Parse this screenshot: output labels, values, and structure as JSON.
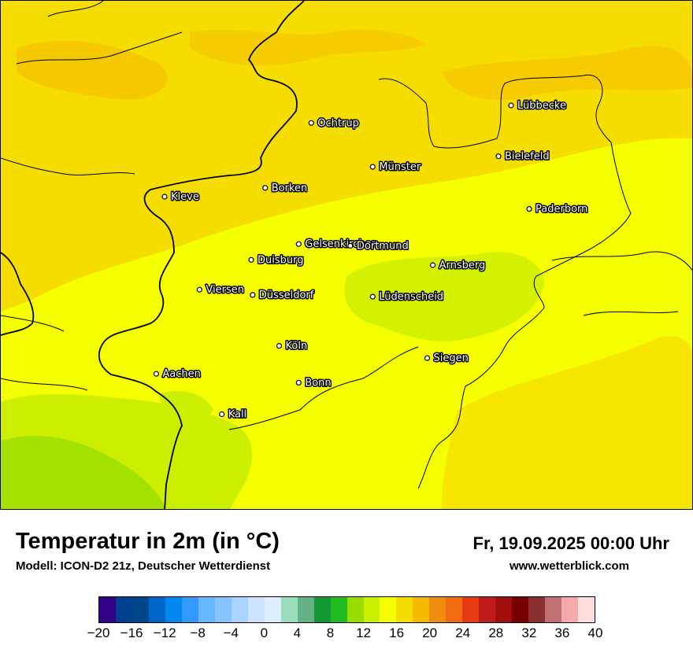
{
  "title": "Temperatur in 2m (in °C)",
  "subtitle": "Modell: ICON-D2 21z, Deutscher Wetterdienst",
  "datetime": "Fr, 19.09.2025 00:00 Uhr",
  "website": "www.wetterblick.com",
  "cities": [
    {
      "name": "Lübbecke",
      "lon": 8.62,
      "lat": 52.31
    },
    {
      "name": "Ochtrup",
      "lon": 7.19,
      "lat": 52.21
    },
    {
      "name": "Bielefeld",
      "lon": 8.53,
      "lat": 52.02
    },
    {
      "name": "Münster",
      "lon": 7.63,
      "lat": 51.96
    },
    {
      "name": "Borken",
      "lon": 6.86,
      "lat": 51.84
    },
    {
      "name": "Kleve",
      "lon": 6.14,
      "lat": 51.79
    },
    {
      "name": "Paderborn",
      "lon": 8.75,
      "lat": 51.72
    },
    {
      "name": "Gelsenkirchen",
      "lon": 7.1,
      "lat": 51.52
    },
    {
      "name": "Dortmund",
      "lon": 7.47,
      "lat": 51.51
    },
    {
      "name": "Duisburg",
      "lon": 6.76,
      "lat": 51.43
    },
    {
      "name": "Arnsberg",
      "lon": 8.06,
      "lat": 51.4
    },
    {
      "name": "Viersen",
      "lon": 6.39,
      "lat": 51.26
    },
    {
      "name": "Düsseldorf",
      "lon": 6.77,
      "lat": 51.23
    },
    {
      "name": "Lüdenscheid",
      "lon": 7.63,
      "lat": 51.22
    },
    {
      "name": "Köln",
      "lon": 6.96,
      "lat": 50.94
    },
    {
      "name": "Siegen",
      "lon": 8.02,
      "lat": 50.87
    },
    {
      "name": "Aachen",
      "lon": 6.08,
      "lat": 50.78
    },
    {
      "name": "Bonn",
      "lon": 7.1,
      "lat": 50.73
    },
    {
      "name": "Kall",
      "lon": 6.55,
      "lat": 50.55
    }
  ],
  "legend": {
    "unit": "°C",
    "ticks": [
      "−20",
      "−16",
      "−12",
      "−8",
      "−4",
      "0",
      "4",
      "8",
      "12",
      "16",
      "20",
      "24",
      "28",
      "32",
      "36",
      "40"
    ],
    "colors": [
      "#330088",
      "#003f8f",
      "#00468a",
      "#0065c8",
      "#0088f0",
      "#3399ff",
      "#66b8ff",
      "#88c4ff",
      "#aad4ff",
      "#cce4ff",
      "#ddeeff",
      "#99ddbb",
      "#66b088",
      "#119933",
      "#22bb22",
      "#99dd00",
      "#ccee00",
      "#f5ff00",
      "#f5dd00",
      "#f5bb00",
      "#f08c10",
      "#f06a10",
      "#e83a10",
      "#c01a1a",
      "#a00e0e",
      "#770000",
      "#8b3030",
      "#c07070",
      "#f5aaaa",
      "#ffdddd"
    ]
  }
}
